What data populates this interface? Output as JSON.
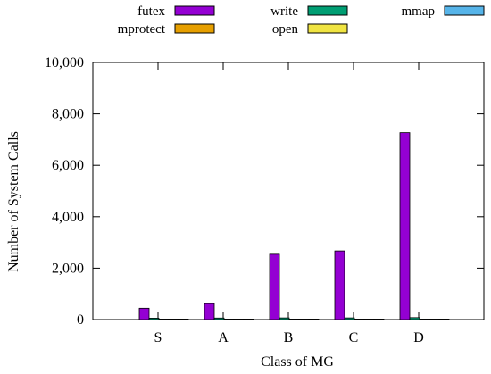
{
  "chart_data": {
    "type": "bar",
    "title": "",
    "xlabel": "Class of MG",
    "ylabel": "Number of System Calls",
    "categories": [
      "S",
      "A",
      "B",
      "C",
      "D"
    ],
    "ylim": [
      0,
      10000
    ],
    "yticks": [
      0,
      2000,
      4000,
      6000,
      8000,
      10000
    ],
    "ytick_labels": [
      "0",
      "2,000",
      "4,000",
      "6,000",
      "8,000",
      "10,000"
    ],
    "grid": false,
    "legend_position": "top",
    "series": [
      {
        "name": "futex",
        "color": "#9400d3",
        "values": [
          440,
          620,
          2540,
          2670,
          7270
        ]
      },
      {
        "name": "write",
        "color": "#009e73",
        "values": [
          55,
          60,
          65,
          65,
          75
        ]
      },
      {
        "name": "mmap",
        "color": "#56b4e9",
        "values": [
          20,
          20,
          20,
          20,
          20
        ]
      },
      {
        "name": "mprotect",
        "color": "#e69f00",
        "values": [
          20,
          20,
          20,
          20,
          20
        ]
      },
      {
        "name": "open",
        "color": "#f0e442",
        "values": [
          20,
          20,
          20,
          20,
          20
        ]
      }
    ]
  }
}
